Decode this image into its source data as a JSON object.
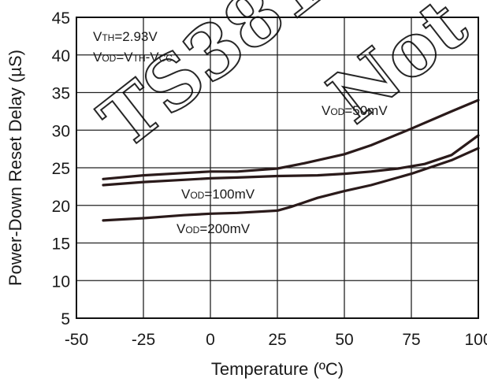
{
  "chart_data": {
    "type": "line",
    "xlabel": "Temperature (ºC)",
    "ylabel": "Power-Down Reset Delay (µS)",
    "xlim": [
      -50,
      100
    ],
    "ylim": [
      5,
      45
    ],
    "xticks": [
      -50,
      -25,
      0,
      25,
      50,
      75,
      100
    ],
    "yticks": [
      5,
      10,
      15,
      20,
      25,
      30,
      35,
      40,
      45
    ],
    "grid": true,
    "conditions": [
      {
        "main": "V",
        "sub": "TH",
        "rest": "=2.93V"
      },
      {
        "main": "V",
        "sub": "OD",
        "rest": "=V",
        "sub2": "TH",
        "rest2": "-V",
        "sub3": "CC"
      }
    ],
    "series": [
      {
        "name": "VOD=50mV",
        "label": {
          "main": "V",
          "sub": "OD",
          "rest": "=50mV"
        },
        "x": [
          -40,
          -25,
          -10,
          0,
          10,
          25,
          35,
          50,
          60,
          75,
          90,
          100
        ],
        "y": [
          23.5,
          24.0,
          24.3,
          24.5,
          24.5,
          24.9,
          25.6,
          26.8,
          28.0,
          30.2,
          32.5,
          34.0
        ]
      },
      {
        "name": "VOD=100mV",
        "label": {
          "main": "V",
          "sub": "OD",
          "rest": "=100mV"
        },
        "x": [
          -40,
          -25,
          -10,
          0,
          10,
          25,
          40,
          50,
          60,
          70,
          80,
          90,
          100
        ],
        "y": [
          22.7,
          23.1,
          23.4,
          23.6,
          23.7,
          23.9,
          24.0,
          24.2,
          24.5,
          24.9,
          25.5,
          26.7,
          29.3
        ]
      },
      {
        "name": "VOD=200mV",
        "label": {
          "main": "V",
          "sub": "OD",
          "rest": "=200mV"
        },
        "x": [
          -40,
          -25,
          -10,
          0,
          10,
          25,
          30,
          40,
          50,
          60,
          75,
          90,
          100
        ],
        "y": [
          18.0,
          18.3,
          18.7,
          18.9,
          19.0,
          19.3,
          19.8,
          21.0,
          21.9,
          22.7,
          24.2,
          26.0,
          27.6
        ]
      }
    ]
  },
  "watermark": {
    "left": "TS381",
    "right": "Not"
  }
}
